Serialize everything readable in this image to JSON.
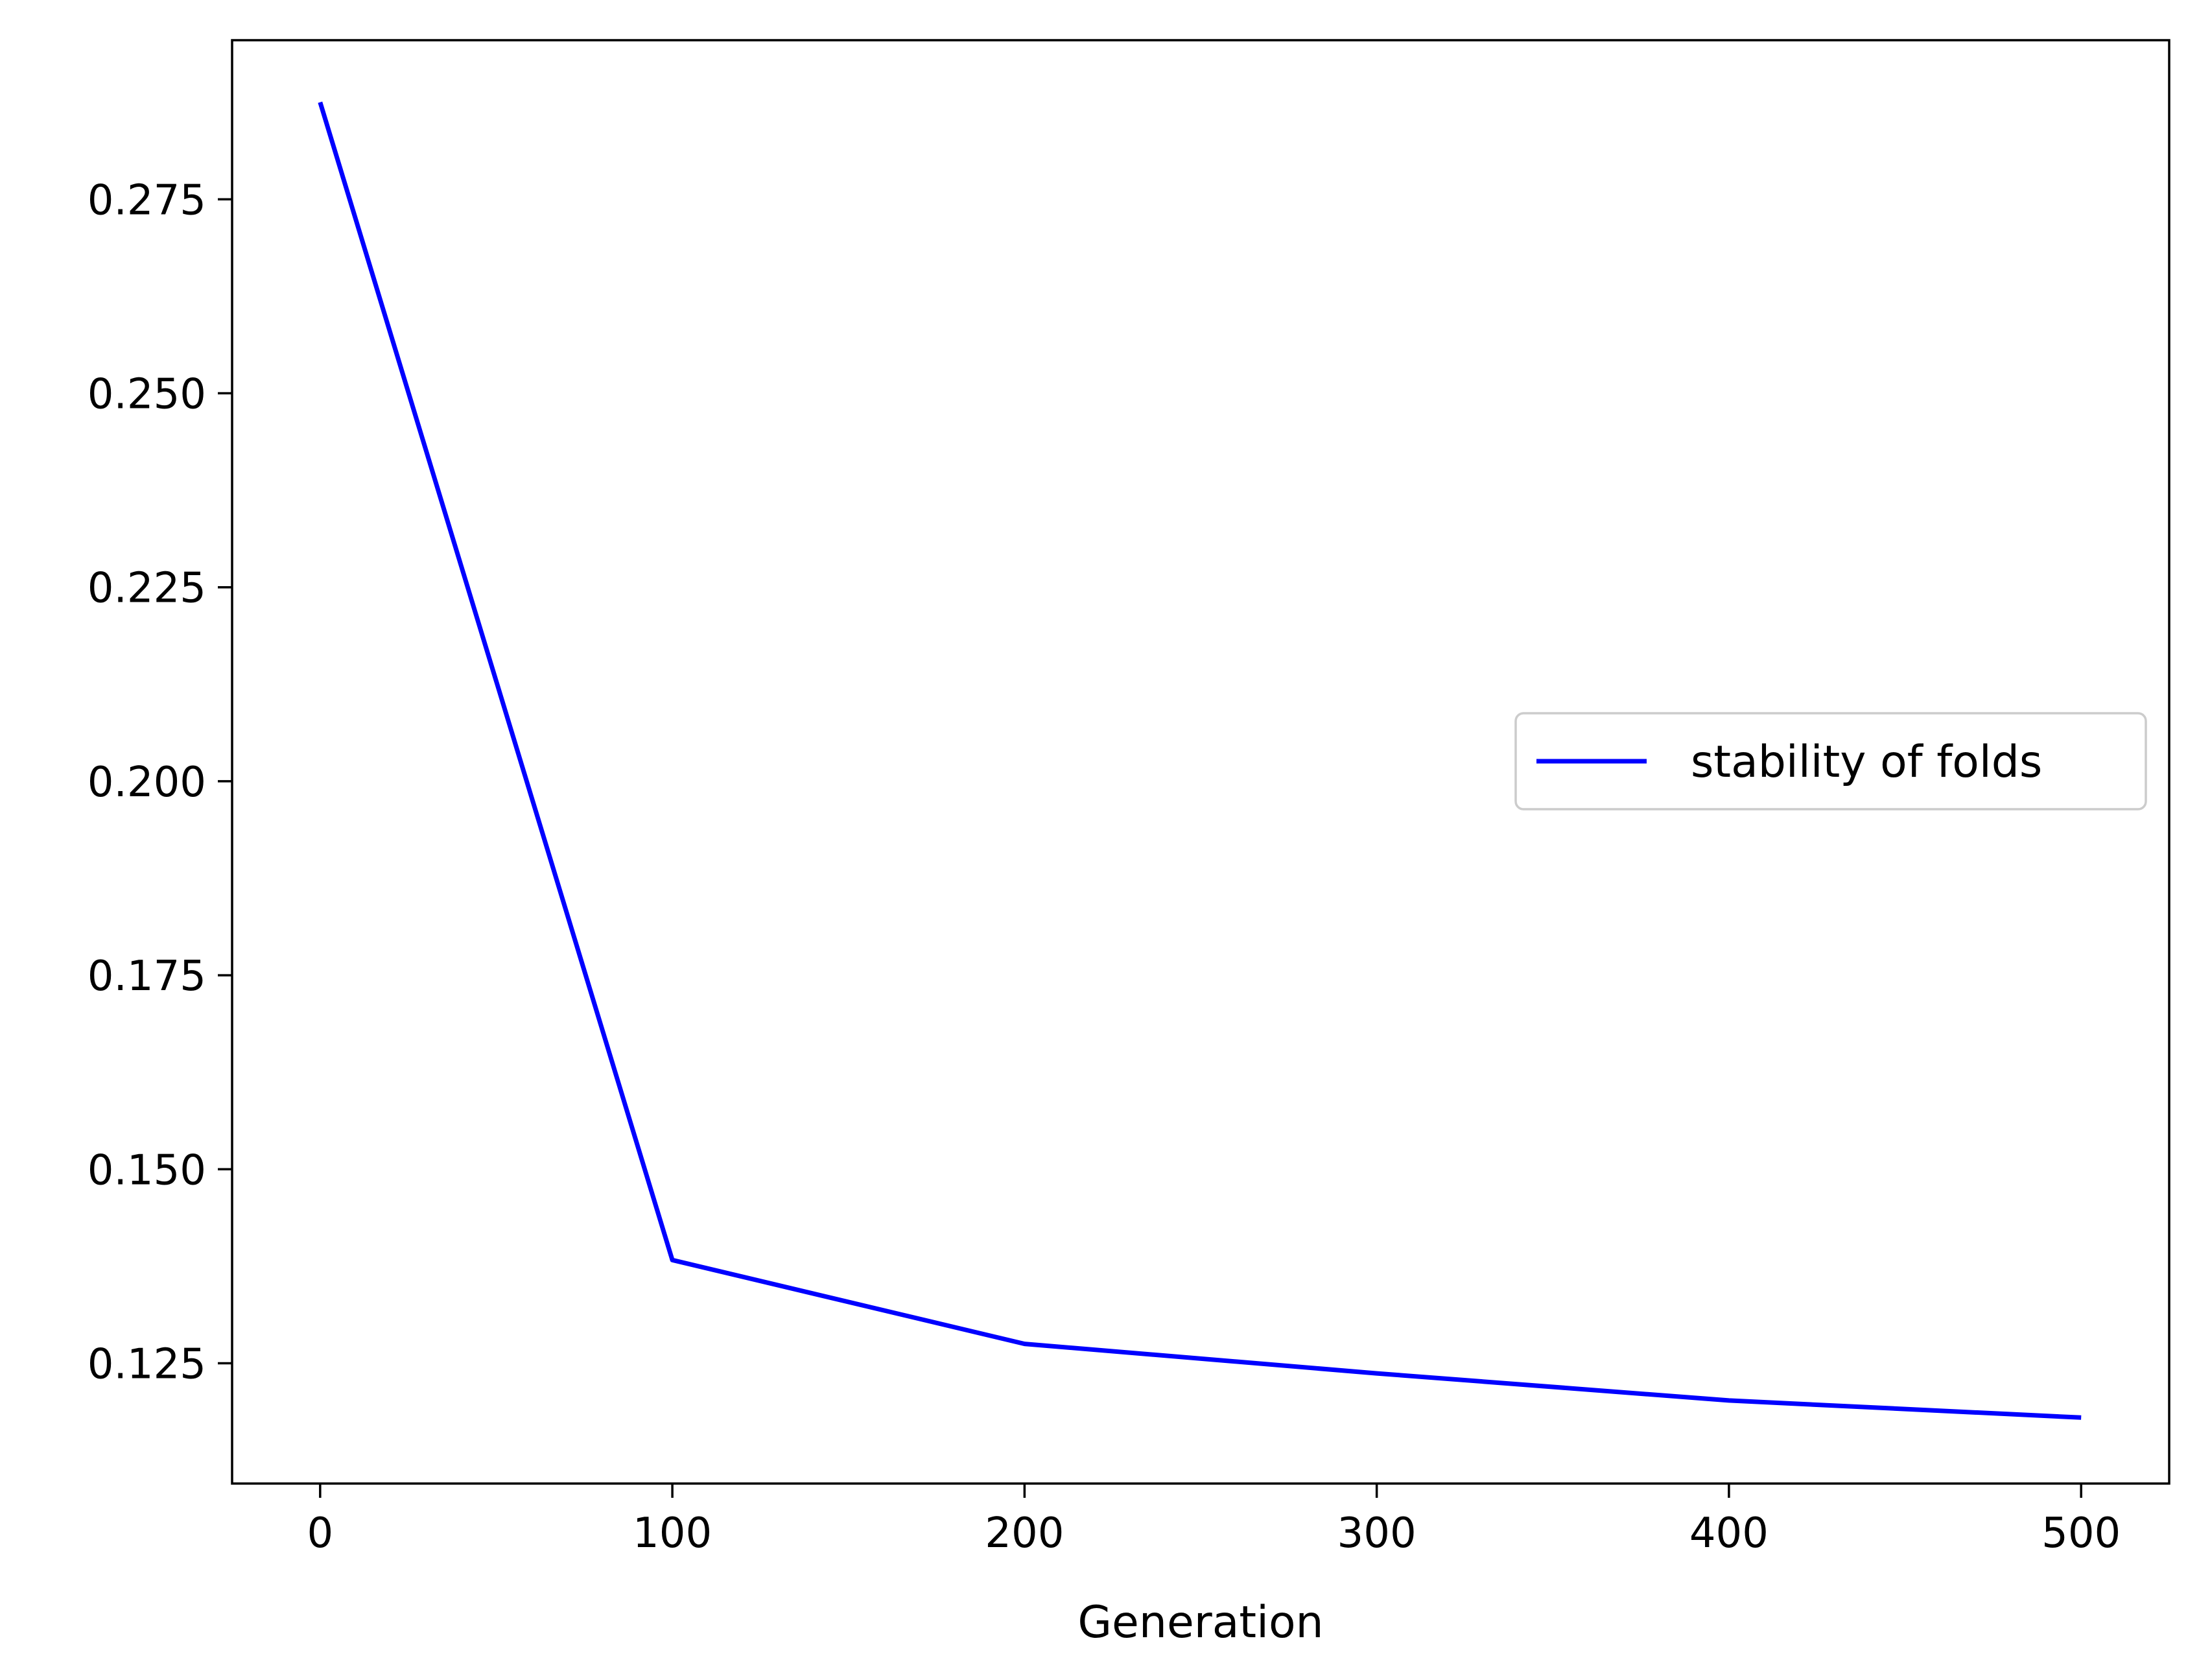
{
  "chart_data": {
    "type": "line",
    "title": "",
    "xlabel": "Generation",
    "ylabel": "",
    "x": [
      0,
      100,
      200,
      300,
      400,
      500
    ],
    "series": [
      {
        "name": "stability of folds",
        "color": "#0000ff",
        "values": [
          0.2875,
          0.1383,
          0.1275,
          0.1237,
          0.1202,
          0.118
        ]
      }
    ],
    "xlim": [
      -25,
      525
    ],
    "ylim": [
      0.1095,
      0.2955
    ],
    "xticks": [
      0,
      100,
      200,
      300,
      400,
      500
    ],
    "xtick_labels": [
      "0",
      "100",
      "200",
      "300",
      "400",
      "500"
    ],
    "yticks": [
      0.125,
      0.15,
      0.175,
      0.2,
      0.225,
      0.25,
      0.275
    ],
    "ytick_labels": [
      "0.125",
      "0.150",
      "0.175",
      "0.200",
      "0.225",
      "0.250",
      "0.275"
    ],
    "grid": false,
    "legend": {
      "position": "center-right"
    }
  }
}
